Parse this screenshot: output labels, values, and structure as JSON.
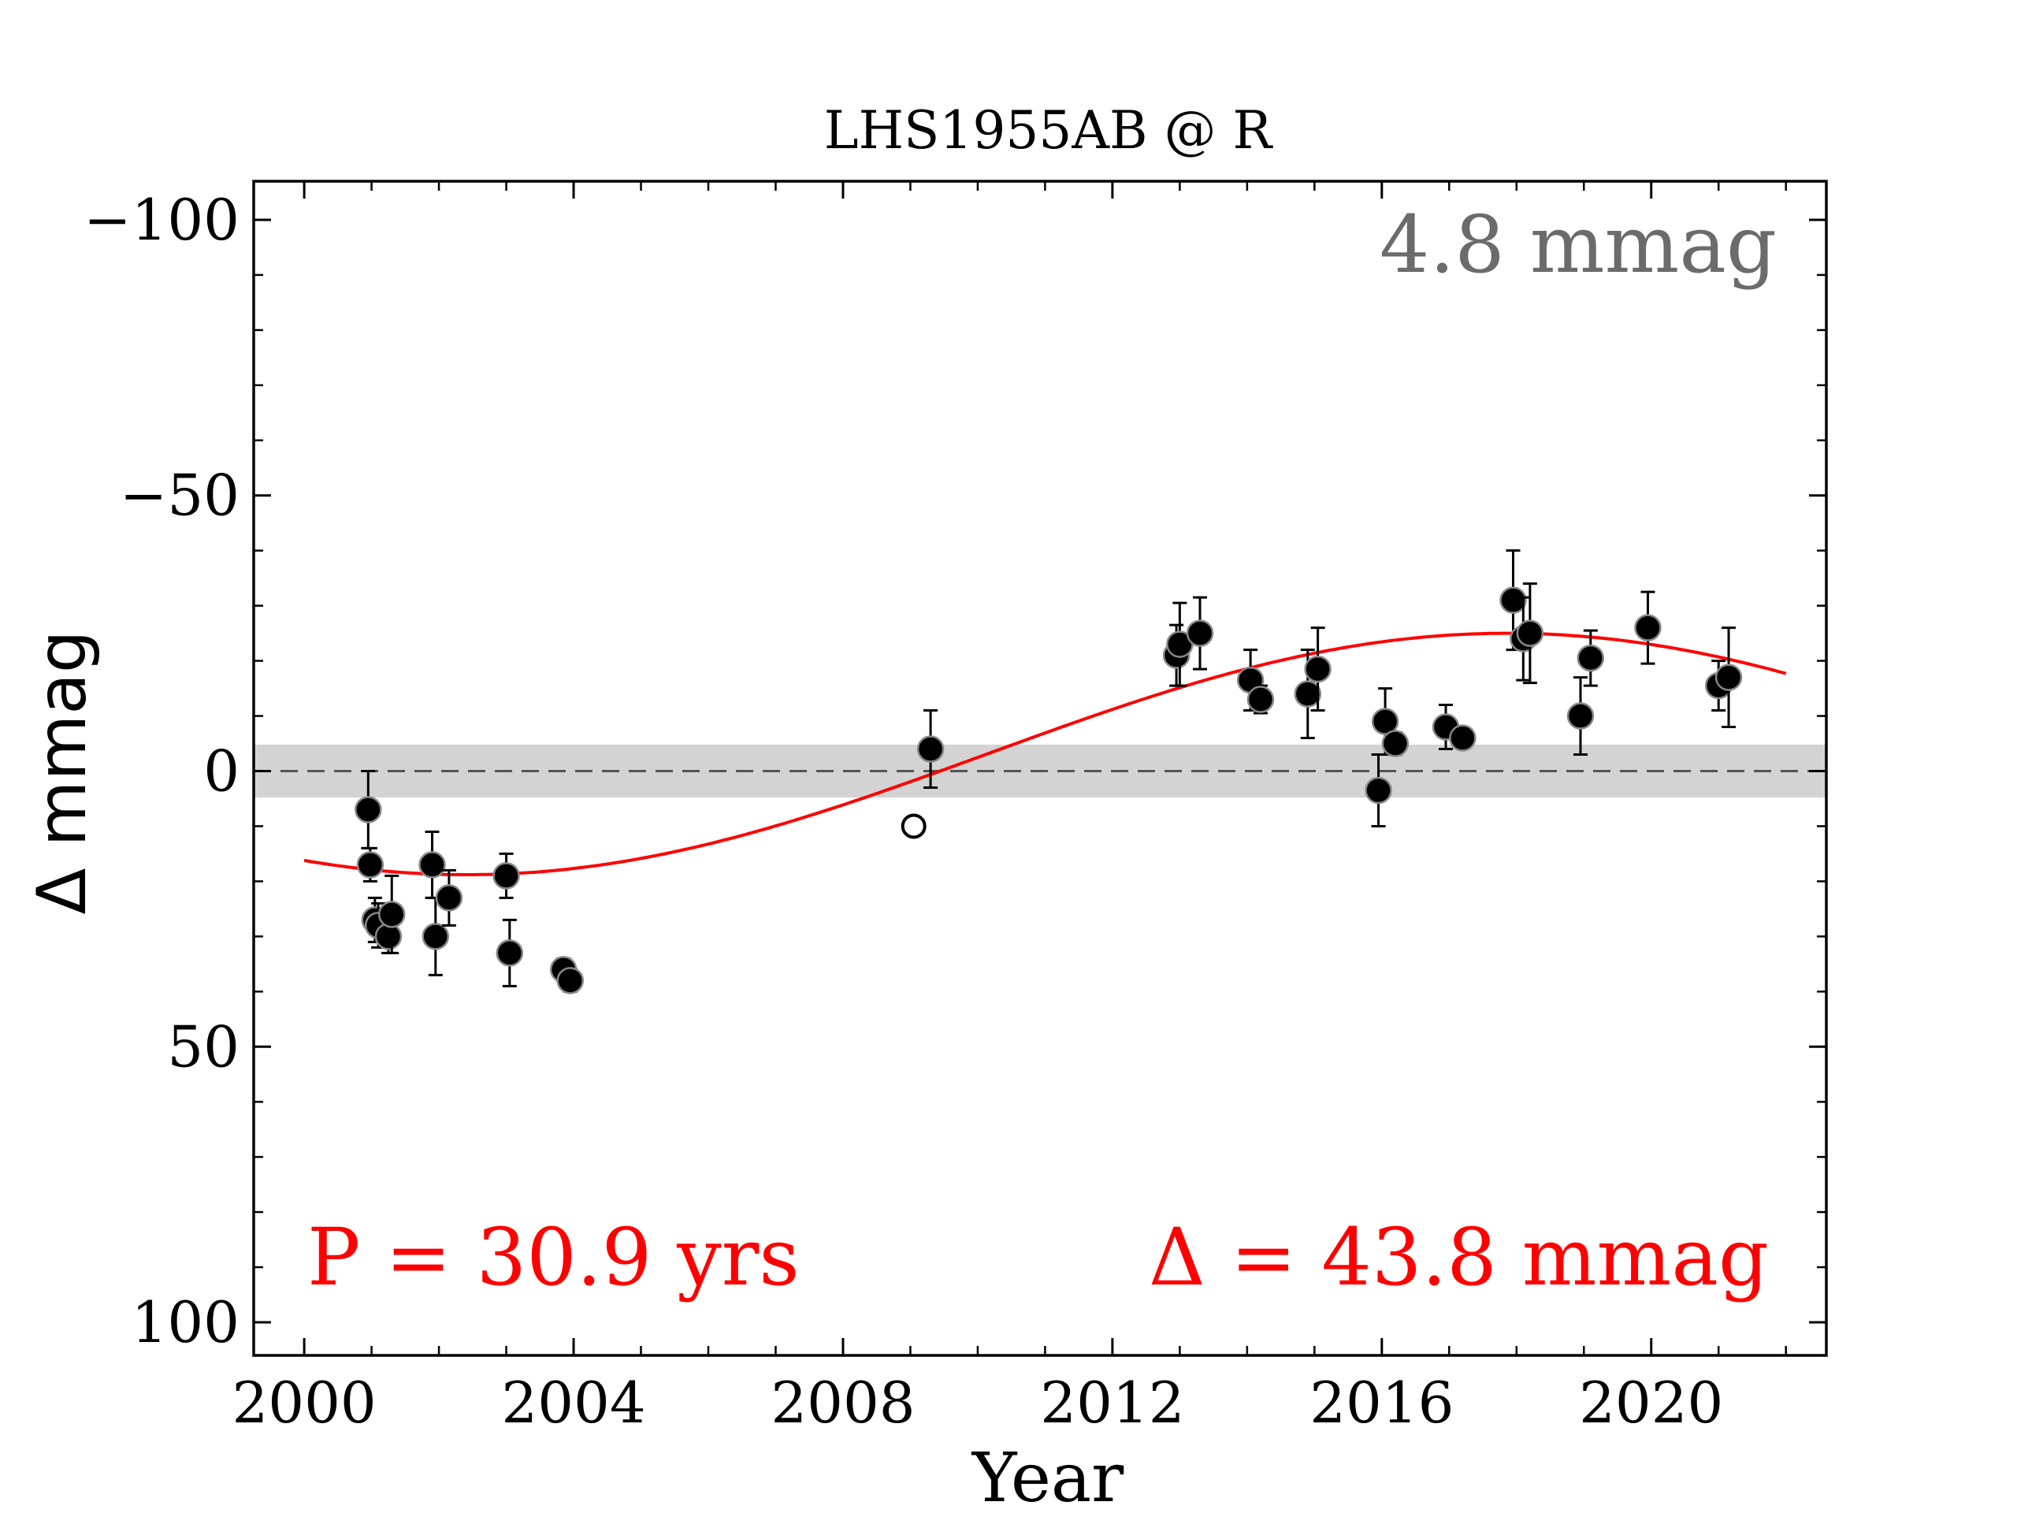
{
  "chart_data": {
    "type": "scatter",
    "title": "LHS1955AB @ R",
    "xlabel": "Year",
    "ylabel": "Δ  mmag",
    "xlim": [
      1999.25,
      2022.6
    ],
    "ylim": [
      106,
      -107
    ],
    "y_inverted": true,
    "xticks": [
      2000,
      2004,
      2008,
      2012,
      2016,
      2020
    ],
    "xtick_labels": [
      "2000",
      "2004",
      "2008",
      "2012",
      "2016",
      "2020"
    ],
    "yticks": [
      -100,
      -50,
      0,
      50,
      100
    ],
    "ytick_labels": [
      "−100",
      "−50",
      "0",
      "50",
      "100"
    ],
    "grid": false,
    "baseline": 0,
    "band_halfwidth": 4.8,
    "band_label": "4.8 mmag",
    "fit_label_period": "P = 30.9 yrs",
    "fit_label_amplitude": "Δ = 43.8 mmag",
    "fit": {
      "period_years": 30.9,
      "amplitude": 21.9,
      "offset": -3.1,
      "phase_year": 2010.14,
      "x_range": [
        2000,
        2022
      ]
    },
    "series": [
      {
        "marker": "filled-circle",
        "x": [
          2000.95,
          2000.98,
          2001.05,
          2001.1,
          2001.25,
          2001.3,
          2001.9,
          2001.95,
          2002.15,
          2003.0,
          2003.05,
          2003.85,
          2003.95,
          2012.95,
          2013.0,
          2013.3,
          2014.05,
          2014.2,
          2014.9,
          2015.05,
          2015.95,
          2016.05,
          2016.2,
          2016.95,
          2017.2,
          2017.95,
          2018.1,
          2018.2,
          2018.95,
          2019.1,
          2019.95,
          2021.0,
          2021.15
        ],
        "y": [
          7,
          17,
          27,
          28,
          30,
          26,
          17,
          30,
          23,
          19,
          33,
          36,
          38,
          -21,
          -23,
          -25,
          -16.5,
          -13,
          -14,
          -18.5,
          3.5,
          -9,
          -5,
          -8,
          -6,
          -31,
          -24,
          -25,
          -10,
          -20.5,
          -26,
          -15.5,
          -17
        ],
        "yerr": [
          7,
          3,
          4,
          4,
          3,
          7,
          6,
          7,
          5,
          4,
          6,
          2,
          2,
          5.5,
          7.5,
          6.5,
          5.5,
          2.5,
          8,
          7.5,
          6.5,
          6,
          2,
          4,
          1,
          9,
          7.5,
          9,
          7,
          5,
          6.5,
          4.5,
          9
        ]
      },
      {
        "marker": "open-circle",
        "x": [
          2009.05
        ],
        "y": [
          10
        ],
        "yerr": [
          0
        ]
      },
      {
        "marker": "filled-circle",
        "x": [
          2009.3
        ],
        "y": [
          -4
        ],
        "yerr": [
          7
        ]
      }
    ],
    "colors": {
      "points": "#000000",
      "point_edge": "#888888",
      "fit": "#ff0000",
      "band": "#d3d3d3",
      "baseline": "#555555",
      "band_label": "#6b6b6b",
      "fit_labels": "#ff0000"
    }
  }
}
